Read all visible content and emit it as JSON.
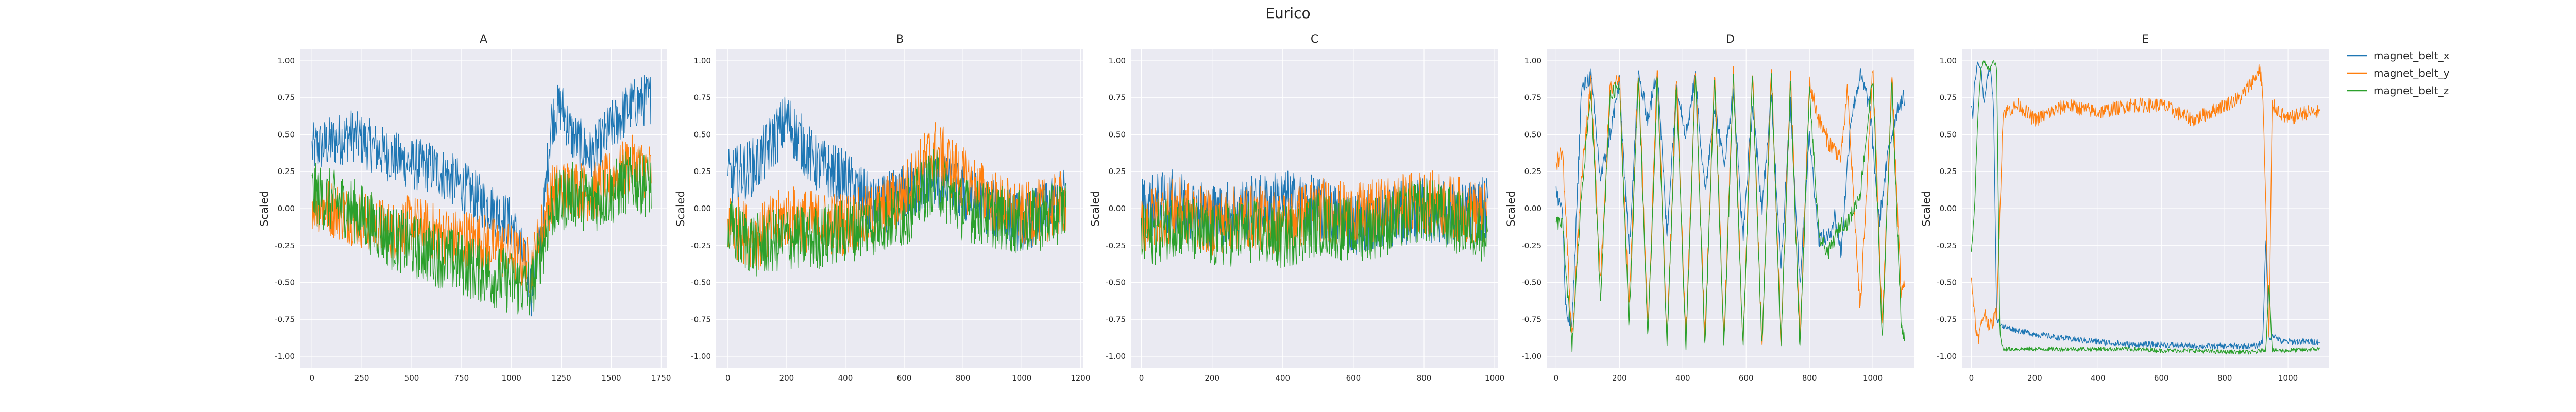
{
  "figure": {
    "title": "Eurico"
  },
  "colors": {
    "magnet_belt_x": "#1f77b4",
    "magnet_belt_y": "#ff7f0e",
    "magnet_belt_z": "#2ca02c",
    "plot_bg": "#eaeaf2",
    "grid": "#ffffff"
  },
  "legend": {
    "placement": "upper-right-outside",
    "entries": [
      "magnet_belt_x",
      "magnet_belt_y",
      "magnet_belt_z"
    ]
  },
  "chart_data": [
    {
      "type": "line",
      "title": "A",
      "ylabel": "Scaled",
      "xlim": [
        -60,
        1780
      ],
      "ylim": [
        -1.08,
        1.08
      ],
      "xticks": [
        0,
        250,
        500,
        750,
        1000,
        1250,
        1500,
        1750
      ],
      "yticks": [
        -1.0,
        -0.75,
        -0.5,
        -0.25,
        0.0,
        0.25,
        0.5,
        0.75,
        1.0
      ],
      "grid": true,
      "series": [
        {
          "name": "magnet_belt_x",
          "x": [
            0,
            100,
            200,
            300,
            400,
            500,
            600,
            700,
            800,
            900,
            1000,
            1050,
            1100,
            1150,
            1200,
            1250,
            1300,
            1400,
            1500,
            1600,
            1700
          ],
          "y": [
            0.4,
            0.45,
            0.5,
            0.42,
            0.35,
            0.3,
            0.28,
            0.2,
            0.1,
            0.0,
            -0.1,
            -0.3,
            -0.55,
            -0.2,
            0.6,
            0.7,
            0.5,
            0.35,
            0.55,
            0.7,
            0.75
          ],
          "noise": 0.18
        },
        {
          "name": "magnet_belt_y",
          "x": [
            0,
            100,
            200,
            300,
            400,
            500,
            600,
            700,
            800,
            900,
            1000,
            1100,
            1200,
            1300,
            1400,
            1500,
            1600,
            1700
          ],
          "y": [
            0.05,
            0.0,
            -0.05,
            -0.1,
            -0.15,
            -0.1,
            -0.15,
            -0.2,
            -0.2,
            -0.25,
            -0.3,
            -0.4,
            0.1,
            0.15,
            0.1,
            0.2,
            0.3,
            0.25
          ],
          "noise": 0.2
        },
        {
          "name": "magnet_belt_z",
          "x": [
            0,
            100,
            200,
            300,
            400,
            500,
            600,
            700,
            800,
            900,
            1000,
            1100,
            1200,
            1300,
            1400,
            1500,
            1600,
            1700
          ],
          "y": [
            0.1,
            0.05,
            0.0,
            -0.1,
            -0.2,
            -0.25,
            -0.3,
            -0.35,
            -0.4,
            -0.45,
            -0.5,
            -0.55,
            0.0,
            0.1,
            0.05,
            0.1,
            0.2,
            0.15
          ],
          "noise": 0.22
        }
      ]
    },
    {
      "type": "line",
      "title": "B",
      "ylabel": "Scaled",
      "xlim": [
        -40,
        1210
      ],
      "ylim": [
        -1.08,
        1.08
      ],
      "xticks": [
        0,
        200,
        400,
        600,
        800,
        1000,
        1200
      ],
      "yticks": [
        -1.0,
        -0.75,
        -0.5,
        -0.25,
        0.0,
        0.25,
        0.5,
        0.75,
        1.0
      ],
      "grid": true,
      "series": [
        {
          "name": "magnet_belt_x",
          "x": [
            0,
            100,
            200,
            300,
            400,
            500,
            600,
            700,
            800,
            900,
            1000,
            1100,
            1150
          ],
          "y": [
            0.2,
            0.3,
            0.6,
            0.3,
            0.2,
            0.0,
            0.1,
            0.2,
            0.1,
            0.0,
            -0.1,
            0.0,
            0.1
          ],
          "noise": 0.2
        },
        {
          "name": "magnet_belt_y",
          "x": [
            0,
            100,
            200,
            300,
            400,
            500,
            600,
            700,
            800,
            900,
            1000,
            1100,
            1150
          ],
          "y": [
            -0.1,
            -0.2,
            -0.05,
            -0.1,
            -0.1,
            -0.05,
            0.1,
            0.4,
            0.2,
            0.05,
            -0.05,
            0.0,
            0.05
          ],
          "noise": 0.22
        },
        {
          "name": "magnet_belt_z",
          "x": [
            0,
            100,
            200,
            300,
            400,
            500,
            600,
            700,
            800,
            900,
            1000,
            1100,
            1150
          ],
          "y": [
            -0.15,
            -0.25,
            -0.2,
            -0.2,
            -0.15,
            -0.1,
            -0.05,
            0.2,
            0.0,
            -0.05,
            -0.1,
            -0.05,
            0.0
          ],
          "noise": 0.22
        }
      ]
    },
    {
      "type": "line",
      "title": "C",
      "ylabel": "Scaled",
      "xlim": [
        -30,
        1010
      ],
      "ylim": [
        -1.08,
        1.08
      ],
      "xticks": [
        0,
        200,
        400,
        600,
        800,
        1000
      ],
      "yticks": [
        -1.0,
        -0.75,
        -0.5,
        -0.25,
        0.0,
        0.25,
        0.5,
        0.75,
        1.0
      ],
      "grid": true,
      "series": [
        {
          "name": "magnet_belt_x",
          "x": [
            0,
            100,
            200,
            300,
            400,
            500,
            600,
            700,
            800,
            900,
            980
          ],
          "y": [
            0.0,
            0.05,
            -0.05,
            0.0,
            0.05,
            0.0,
            -0.1,
            -0.05,
            0.0,
            -0.05,
            0.0
          ],
          "noise": 0.22
        },
        {
          "name": "magnet_belt_y",
          "x": [
            0,
            100,
            200,
            300,
            400,
            500,
            600,
            700,
            800,
            900,
            980
          ],
          "y": [
            -0.1,
            0.0,
            -0.1,
            -0.05,
            -0.1,
            0.0,
            -0.05,
            0.0,
            0.05,
            0.0,
            -0.05
          ],
          "noise": 0.22
        },
        {
          "name": "magnet_belt_z",
          "x": [
            0,
            100,
            200,
            300,
            400,
            500,
            600,
            700,
            800,
            900,
            980
          ],
          "y": [
            -0.2,
            -0.1,
            -0.2,
            -0.15,
            -0.2,
            -0.1,
            -0.15,
            -0.1,
            0.0,
            -0.1,
            -0.15
          ],
          "noise": 0.22
        }
      ]
    },
    {
      "type": "line",
      "title": "D",
      "ylabel": "Scaled",
      "xlim": [
        -30,
        1130
      ],
      "ylim": [
        -1.08,
        1.08
      ],
      "xticks": [
        0,
        200,
        400,
        600,
        800,
        1000
      ],
      "yticks": [
        -1.0,
        -0.75,
        -0.5,
        -0.25,
        0.0,
        0.25,
        0.5,
        0.75,
        1.0
      ],
      "grid": true,
      "series": [
        {
          "name": "magnet_belt_x",
          "x": [
            0,
            20,
            30,
            50,
            80,
            110,
            140,
            170,
            200,
            230,
            260,
            290,
            320,
            350,
            380,
            410,
            440,
            470,
            500,
            530,
            560,
            590,
            620,
            650,
            680,
            710,
            740,
            770,
            800,
            830,
            860,
            880,
            900,
            930,
            960,
            990,
            1020,
            1050,
            1080,
            1100
          ],
          "y": [
            0.1,
            0.0,
            -0.7,
            -0.8,
            0.8,
            0.9,
            0.2,
            0.5,
            0.85,
            -0.3,
            0.9,
            0.6,
            0.95,
            -0.2,
            0.85,
            0.5,
            0.9,
            0.1,
            0.7,
            0.3,
            0.8,
            -0.2,
            0.7,
            0.0,
            0.75,
            -0.4,
            0.7,
            -0.5,
            0.5,
            -0.2,
            -0.2,
            -0.05,
            -0.3,
            0.6,
            0.9,
            0.7,
            -0.1,
            0.4,
            0.7,
            0.75
          ],
          "noise": 0.06
        },
        {
          "name": "magnet_belt_y",
          "x": [
            0,
            20,
            50,
            80,
            110,
            140,
            170,
            200,
            230,
            260,
            290,
            320,
            350,
            380,
            410,
            440,
            470,
            500,
            530,
            560,
            590,
            620,
            650,
            680,
            710,
            740,
            770,
            800,
            830,
            860,
            900,
            920,
            960,
            1000,
            1030,
            1060,
            1090,
            1100
          ],
          "y": [
            0.3,
            0.4,
            -0.9,
            0.2,
            0.85,
            -0.5,
            0.8,
            0.9,
            -0.7,
            0.95,
            -0.8,
            0.95,
            -0.9,
            0.9,
            -0.9,
            0.95,
            -0.9,
            0.95,
            -0.9,
            0.95,
            -0.95,
            0.95,
            -0.95,
            0.95,
            -0.95,
            0.9,
            -0.9,
            0.85,
            0.6,
            0.45,
            0.35,
            0.8,
            -0.7,
            0.95,
            -0.8,
            0.9,
            -0.6,
            -0.5
          ],
          "noise": 0.06
        },
        {
          "name": "magnet_belt_z",
          "x": [
            0,
            20,
            50,
            80,
            110,
            140,
            170,
            200,
            230,
            260,
            290,
            320,
            350,
            380,
            410,
            440,
            470,
            500,
            530,
            560,
            590,
            620,
            650,
            680,
            710,
            740,
            770,
            800,
            830,
            860,
            900,
            920,
            960,
            1000,
            1030,
            1060,
            1090,
            1100
          ],
          "y": [
            -0.1,
            -0.1,
            -0.95,
            0.1,
            0.8,
            -0.6,
            0.75,
            0.85,
            -0.8,
            0.9,
            -0.9,
            0.9,
            -0.95,
            0.85,
            -0.95,
            0.9,
            -0.95,
            0.9,
            -0.95,
            0.9,
            -0.95,
            0.9,
            -0.95,
            0.9,
            -0.95,
            0.85,
            -0.95,
            0.8,
            -0.2,
            -0.3,
            -0.1,
            -0.1,
            0.1,
            0.9,
            -0.9,
            0.85,
            -0.8,
            -0.85
          ],
          "noise": 0.05
        }
      ]
    },
    {
      "type": "line",
      "title": "E",
      "ylabel": "Scaled",
      "xlim": [
        -30,
        1130
      ],
      "ylim": [
        -1.08,
        1.08
      ],
      "xticks": [
        0,
        200,
        400,
        600,
        800,
        1000
      ],
      "yticks": [
        -1.0,
        -0.75,
        -0.5,
        -0.25,
        0.0,
        0.25,
        0.5,
        0.75,
        1.0
      ],
      "grid": true,
      "series": [
        {
          "name": "magnet_belt_x",
          "x": [
            0,
            5,
            10,
            20,
            30,
            40,
            50,
            60,
            70,
            80,
            100,
            200,
            300,
            400,
            500,
            600,
            700,
            800,
            900,
            920,
            930,
            940,
            950,
            980,
            1000,
            1100
          ],
          "y": [
            0.7,
            0.6,
            0.85,
            1.0,
            0.95,
            0.7,
            0.9,
            0.95,
            0.7,
            -0.75,
            -0.8,
            -0.85,
            -0.88,
            -0.9,
            -0.92,
            -0.92,
            -0.93,
            -0.93,
            -0.93,
            -0.9,
            -0.2,
            -0.9,
            -0.85,
            -0.9,
            -0.9,
            -0.9
          ],
          "noise": 0.02
        },
        {
          "name": "magnet_belt_y",
          "x": [
            0,
            20,
            40,
            60,
            80,
            100,
            150,
            200,
            300,
            400,
            500,
            600,
            700,
            800,
            850,
            900,
            910,
            920,
            930,
            940,
            950,
            1000,
            1050,
            1100
          ],
          "y": [
            -0.5,
            -0.9,
            -0.7,
            -0.8,
            -0.7,
            0.65,
            0.7,
            0.6,
            0.7,
            0.65,
            0.7,
            0.7,
            0.6,
            0.7,
            0.75,
            0.9,
            0.95,
            0.8,
            0.0,
            -0.9,
            0.7,
            0.6,
            0.65,
            0.65
          ],
          "noise": 0.05
        },
        {
          "name": "magnet_belt_z",
          "x": [
            0,
            10,
            20,
            30,
            40,
            50,
            60,
            70,
            80,
            90,
            100,
            200,
            300,
            400,
            500,
            600,
            700,
            800,
            900,
            930,
            940,
            950,
            1000,
            1100
          ],
          "y": [
            -0.3,
            0.0,
            0.6,
            0.95,
            1.0,
            0.95,
            0.95,
            1.0,
            0.95,
            -0.85,
            -0.95,
            -0.95,
            -0.95,
            -0.95,
            -0.95,
            -0.96,
            -0.96,
            -0.97,
            -0.97,
            -0.95,
            -0.5,
            -0.96,
            -0.96,
            -0.95
          ],
          "noise": 0.015
        }
      ]
    }
  ]
}
